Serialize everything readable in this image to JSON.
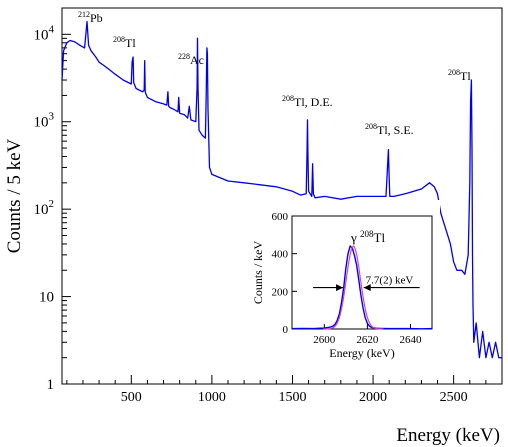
{
  "chart_data": [
    {
      "type": "line",
      "xlabel": "Energy (keV)",
      "ylabel": "Counts / 5 keV",
      "xlim": [
        70,
        2800
      ],
      "ylim": [
        1,
        20000
      ],
      "yscale": "log",
      "x_ticks": [
        500,
        1000,
        1500,
        2000,
        2500
      ],
      "y_ticks": [
        {
          "value": 1,
          "base": "1",
          "exp": ""
        },
        {
          "value": 10,
          "base": "10",
          "exp": ""
        },
        {
          "value": 100,
          "base": "10",
          "exp": "2"
        },
        {
          "value": 1000,
          "base": "10",
          "exp": "3"
        },
        {
          "value": 10000,
          "base": "10",
          "exp": "4"
        }
      ],
      "line_color": "#0000ee",
      "series": [
        {
          "x": [
            70,
            80,
            100,
            120,
            150,
            180,
            210,
            225,
            235,
            250,
            280,
            300,
            330,
            360,
            400,
            450,
            500,
            505,
            511,
            515,
            530,
            570,
            580,
            583,
            586,
            590,
            600,
            650,
            700,
            720,
            727,
            732,
            740,
            760,
            790,
            794,
            800,
            830,
            850,
            860,
            870,
            900,
            908,
            911,
            914,
            920,
            940,
            960,
            965,
            969,
            972,
            976,
            985,
            1000,
            1100,
            1200,
            1300,
            1400,
            1500,
            1550,
            1585,
            1590,
            1593,
            1596,
            1600,
            1620,
            1625,
            1630,
            1640,
            1700,
            1800,
            1900,
            2000,
            2080,
            2095,
            2100,
            2104,
            2110,
            2130,
            2200,
            2300,
            2350,
            2380,
            2400,
            2420,
            2450,
            2480,
            2500,
            2520,
            2550,
            2570,
            2590,
            2600,
            2605,
            2610,
            2614,
            2617,
            2620,
            2625,
            2640,
            2660,
            2680,
            2700,
            2720,
            2740,
            2760,
            2780,
            2800
          ],
          "y": [
            3000,
            6500,
            8000,
            8500,
            8200,
            7500,
            7000,
            14000,
            7500,
            6500,
            5500,
            4800,
            4400,
            4000,
            3500,
            3000,
            2700,
            4800,
            5500,
            2800,
            2400,
            2200,
            2300,
            5000,
            2200,
            2100,
            1900,
            1700,
            1600,
            1550,
            2200,
            1500,
            1450,
            1400,
            1300,
            1900,
            1250,
            1200,
            1100,
            1500,
            1050,
            1000,
            2500,
            9000,
            2500,
            800,
            700,
            650,
            2000,
            7000,
            6000,
            1400,
            300,
            250,
            210,
            200,
            190,
            180,
            160,
            145,
            150,
            420,
            1050,
            450,
            160,
            140,
            330,
            150,
            135,
            140,
            130,
            140,
            140,
            140,
            480,
            220,
            140,
            140,
            140,
            150,
            170,
            200,
            180,
            150,
            90,
            60,
            40,
            25,
            20,
            20,
            18,
            30,
            200,
            1700,
            3000,
            500,
            30,
            8,
            3,
            5,
            2,
            4,
            2,
            3,
            2,
            3,
            2,
            2
          ]
        }
      ],
      "annotations": [
        {
          "iso": "212",
          "text": "Pb",
          "x": 215
        },
        {
          "iso": "208",
          "text": "Tl",
          "x": 510
        },
        {
          "iso": "228",
          "text": "Ac",
          "x": 911
        },
        {
          "iso": "208",
          "text": "Tl, D.E.",
          "x": 1593
        },
        {
          "iso": "208",
          "text": "Tl, S.E.",
          "x": 2104
        },
        {
          "iso": "208",
          "text": "Tl",
          "x": 2614
        }
      ]
    },
    {
      "type": "line",
      "xlabel": "Energy (keV)",
      "ylabel": "Counts / keV",
      "xlim": [
        2585,
        2650
      ],
      "ylim": [
        0,
        600
      ],
      "x_ticks": [
        2600,
        2620,
        2640
      ],
      "y_ticks": [
        0,
        200,
        400,
        600
      ],
      "line_color": "#0000ee",
      "fit_color": "#cc44cc",
      "series": [
        {
          "x": [
            2585,
            2590,
            2595,
            2598,
            2600,
            2602,
            2604,
            2605,
            2606,
            2607,
            2608,
            2609,
            2610,
            2611,
            2612,
            2613,
            2614,
            2615,
            2616,
            2617,
            2618,
            2619,
            2620,
            2621,
            2622,
            2624,
            2626,
            2630,
            2635,
            2640,
            2645,
            2650
          ],
          "y": [
            2,
            3,
            2,
            4,
            5,
            8,
            15,
            25,
            45,
            80,
            140,
            220,
            320,
            400,
            440,
            430,
            390,
            340,
            260,
            180,
            110,
            60,
            30,
            15,
            8,
            4,
            3,
            2,
            2,
            2,
            1,
            2
          ]
        }
      ],
      "fit": {
        "center": 2613.5,
        "fwhm": 7.7,
        "amplitude": 440
      },
      "peak_label_prefix": "γ",
      "peak_label_iso": "208",
      "peak_label_text": "Tl",
      "fwhm_label": "7.7(2) keV"
    }
  ]
}
